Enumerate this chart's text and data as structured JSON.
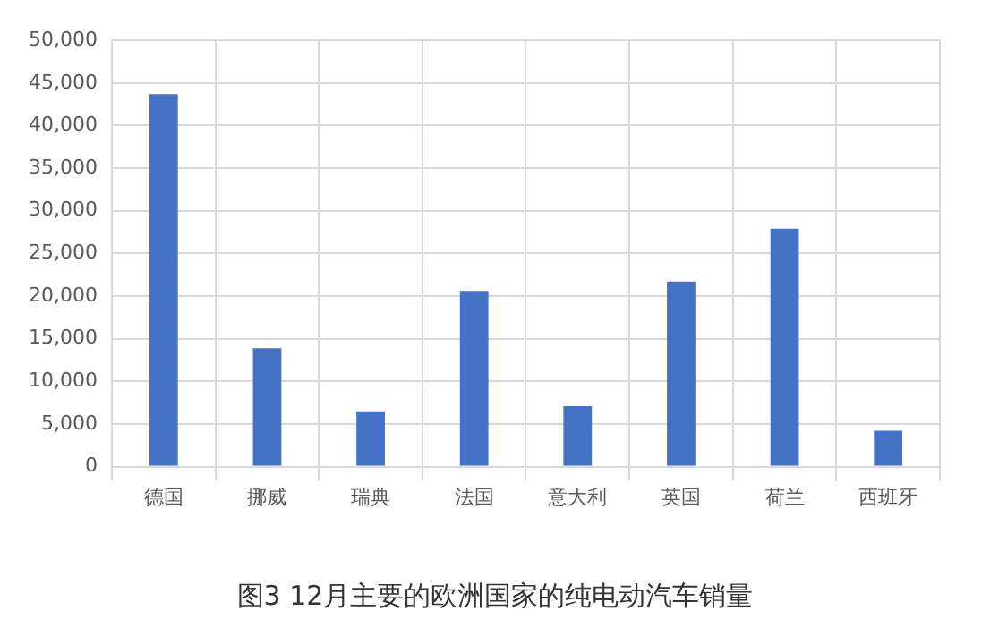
{
  "chart_data": {
    "type": "bar",
    "title": "图3 12月主要的欧洲国家的纯电动汽车销量",
    "categories": [
      "德国",
      "挪威",
      "瑞典",
      "法国",
      "意大利",
      "英国",
      "荷兰",
      "西班牙"
    ],
    "values": [
      43700,
      13900,
      6500,
      20600,
      7100,
      21700,
      27900,
      4200
    ],
    "color": "#4472c4",
    "ylim": [
      0,
      50000
    ],
    "yticks": [
      0,
      {
        "value": 5000,
        "label": "5,000"
      },
      {
        "value": 10000,
        "label": "10,000"
      },
      {
        "value": 15000,
        "label": "15,000"
      },
      {
        "value": 20000,
        "label": "20,000"
      },
      {
        "value": 25000,
        "label": "25,000"
      },
      {
        "value": 30000,
        "label": "30,000"
      },
      {
        "value": 35000,
        "label": "35,000"
      },
      {
        "value": 40000,
        "label": "40,000"
      },
      {
        "value": 45000,
        "label": "45,000"
      },
      {
        "value": 50000,
        "label": "50,000"
      }
    ],
    "grid": true,
    "legend": false
  }
}
